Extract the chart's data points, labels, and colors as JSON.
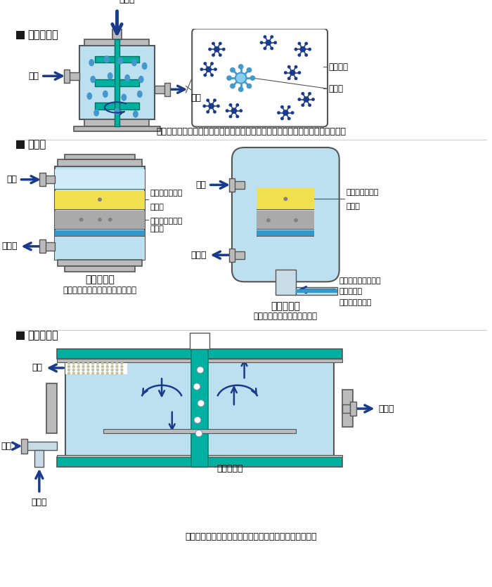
{
  "title1": "■ 凝集反応槽",
  "title2": "■ ろ過器",
  "title3": "■ 加圧浮上槽",
  "desc1": "凝集剤を投入して、水中の汚濁物質を凝集することで、沈殿させやすくします。",
  "desc2_left_title": "重力ろ過器",
  "desc2_left": "重力によって自然にろ過します。",
  "desc2_right_title": "圧力ろ過器",
  "desc2_right": "加圧して高速でろ過します。",
  "desc3": "細かい気泡に汚濁物質を付着させて除去する装置です。",
  "light_blue": "#bde0f0",
  "med_blue": "#4499cc",
  "dark_blue": "#1a3a8c",
  "teal_green": "#00b0a0",
  "gray": "#999999",
  "light_gray": "#bbbbbb",
  "dark_gray": "#808080",
  "yellow": "#f0e050",
  "outline": "#555555",
  "white": "#ffffff",
  "blue_layer": "#3399cc",
  "sludge_color": "#c8c890"
}
